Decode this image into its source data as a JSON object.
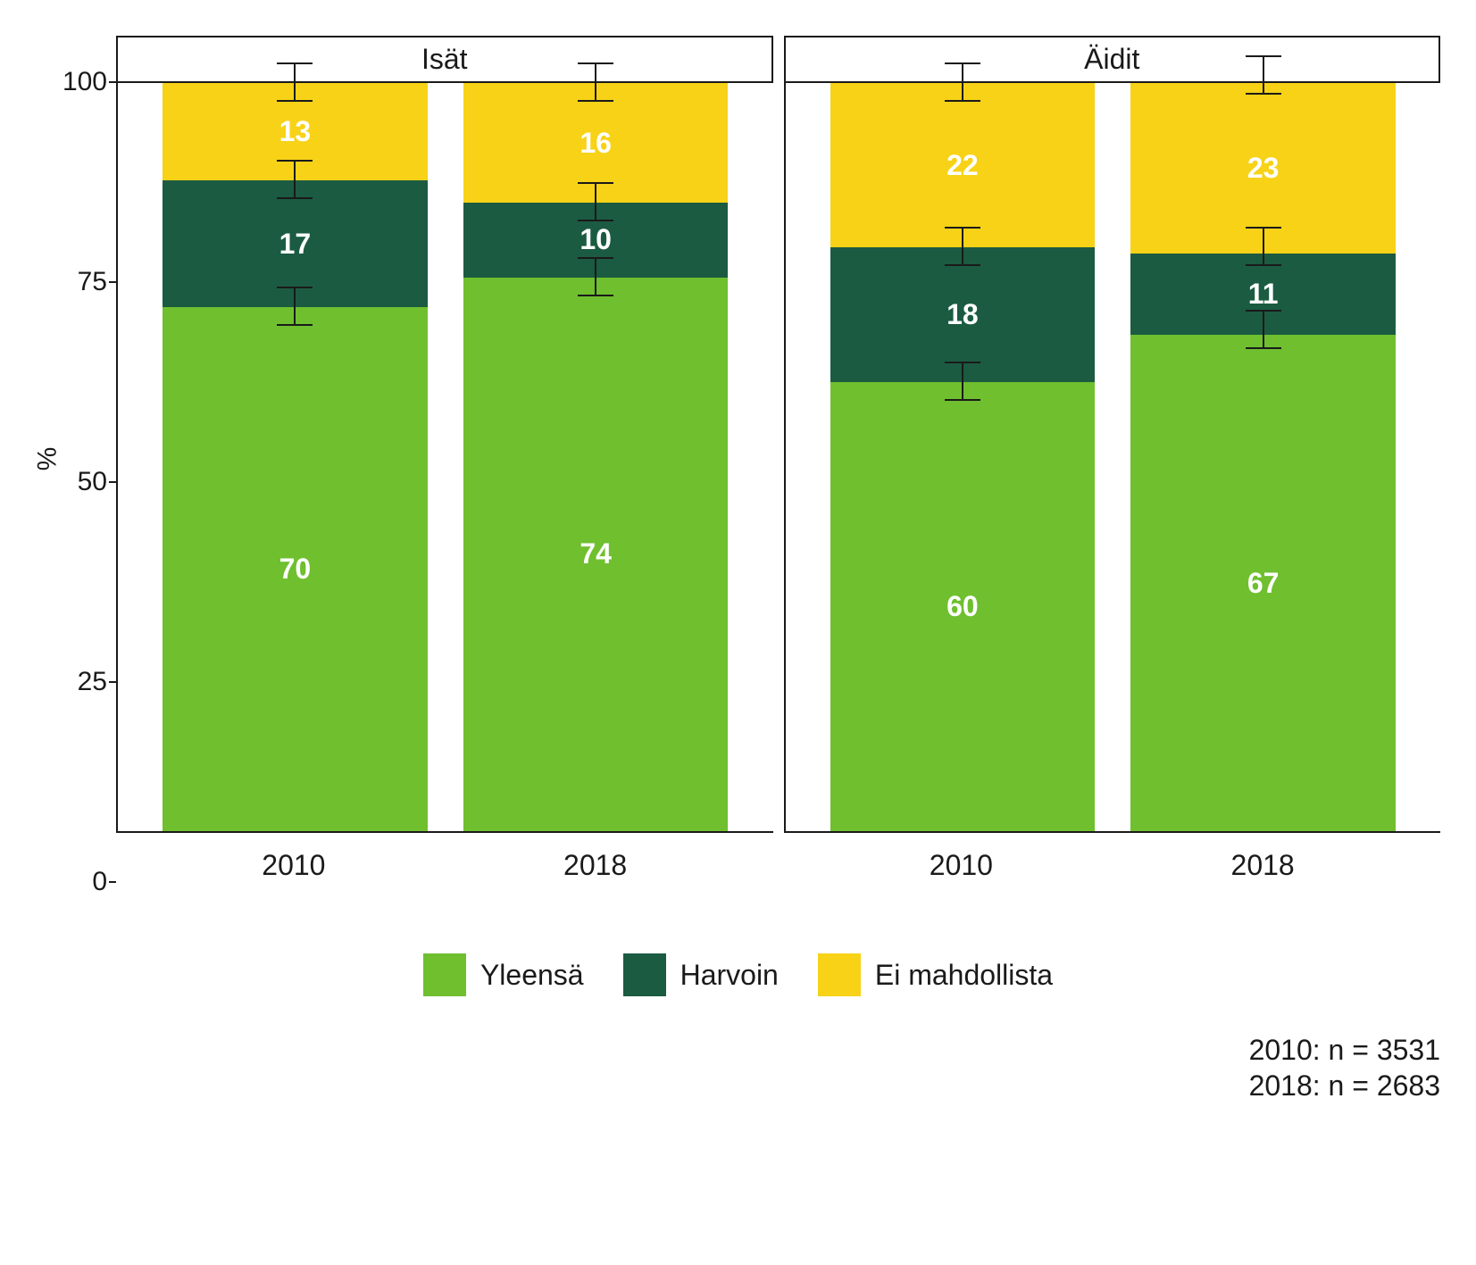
{
  "chart": {
    "type": "stacked-bar",
    "y_axis": {
      "label": "%",
      "min": 0,
      "max": 100,
      "ticks": [
        0,
        25,
        50,
        75,
        100
      ]
    },
    "colors": {
      "yleensa": "#6fbf2f",
      "harvoin": "#1b5b41",
      "ei_mahdollista": "#f7d217",
      "text": "#1a1a1a",
      "value_text": "#ffffff",
      "background": "#ffffff",
      "axis": "#1a1a1a"
    },
    "error_bar_half": 2.5,
    "panels": [
      {
        "title": "Isät",
        "bars": [
          {
            "x": "2010",
            "segments": [
              {
                "key": "yleensa",
                "value": 70
              },
              {
                "key": "harvoin",
                "value": 17
              },
              {
                "key": "ei_mahdollista",
                "value": 13
              }
            ]
          },
          {
            "x": "2018",
            "segments": [
              {
                "key": "yleensa",
                "value": 74
              },
              {
                "key": "harvoin",
                "value": 10
              },
              {
                "key": "ei_mahdollista",
                "value": 16
              }
            ]
          }
        ]
      },
      {
        "title": "Äidit",
        "bars": [
          {
            "x": "2010",
            "segments": [
              {
                "key": "yleensa",
                "value": 60
              },
              {
                "key": "harvoin",
                "value": 18
              },
              {
                "key": "ei_mahdollista",
                "value": 22
              }
            ]
          },
          {
            "x": "2018",
            "segments": [
              {
                "key": "yleensa",
                "value": 67
              },
              {
                "key": "harvoin",
                "value": 11
              },
              {
                "key": "ei_mahdollista",
                "value": 23
              }
            ]
          }
        ]
      }
    ],
    "legend": [
      {
        "key": "yleensa",
        "label": "Yleensä"
      },
      {
        "key": "harvoin",
        "label": "Harvoin"
      },
      {
        "key": "ei_mahdollista",
        "label": "Ei mahdollista"
      }
    ],
    "footnote": {
      "line1": "2010: n = 3531",
      "line2": "2018: n = 2683"
    }
  }
}
